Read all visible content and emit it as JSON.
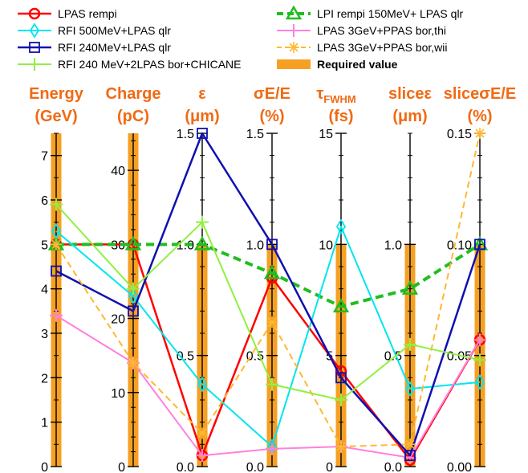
{
  "chart_data": {
    "type": "line",
    "subtype": "parallel-coordinates",
    "axes": [
      {
        "key": "energy",
        "title_lines": [
          "Energy",
          "(GeV)"
        ],
        "range": [
          0,
          7.5
        ],
        "ticks": [
          0,
          1,
          2,
          3,
          4,
          5,
          6,
          7
        ],
        "tick_labels": [
          "0",
          "1",
          "2",
          "3",
          "4",
          "5",
          "6",
          "7"
        ],
        "required": [
          0,
          7.5
        ]
      },
      {
        "key": "charge",
        "title_lines": [
          "Charge",
          "(pC)"
        ],
        "range": [
          0,
          45
        ],
        "ticks": [
          0,
          10,
          20,
          30,
          40
        ],
        "tick_labels": [
          "0",
          "10",
          "20",
          "30",
          "40"
        ],
        "required": [
          0,
          45
        ]
      },
      {
        "key": "emittance",
        "title_lines": [
          "ε",
          "(μm)"
        ],
        "range": [
          0,
          1.5
        ],
        "ticks": [
          0,
          0.5,
          1.0,
          1.5
        ],
        "tick_labels": [
          "0.0",
          "0.5",
          "1.0",
          "1.5"
        ],
        "required": [
          0,
          1.0
        ]
      },
      {
        "key": "energy_spread",
        "title_lines": [
          "σE/E",
          "(%)"
        ],
        "range": [
          0,
          1.5
        ],
        "ticks": [
          0,
          0.5,
          1.0,
          1.5
        ],
        "tick_labels": [
          "0.0",
          "0.5",
          "1.0",
          "1.5"
        ],
        "required": [
          0,
          1.0
        ]
      },
      {
        "key": "duration",
        "title_lines": [
          "τFWHM",
          "(fs)"
        ],
        "title_main": "τ",
        "title_sub": "FWHM",
        "range": [
          0,
          15
        ],
        "ticks": [
          0,
          5,
          10,
          15
        ],
        "tick_labels": [
          "0",
          "5",
          "10",
          "15"
        ],
        "required": [
          0,
          10
        ]
      },
      {
        "key": "slice_emittance",
        "title_lines": [
          "sliceε",
          "(μm)"
        ],
        "range": [
          0,
          1.5
        ],
        "ticks": [
          0,
          0.5,
          1.0
        ],
        "tick_labels": [
          "0.0",
          "0.5",
          "1.0"
        ],
        "required": [
          0,
          1.0
        ]
      },
      {
        "key": "slice_energy_spread",
        "title_lines": [
          "sliceσE/E",
          "(%)"
        ],
        "range": [
          0,
          0.15
        ],
        "ticks": [
          0,
          0.05,
          0.1,
          0.15
        ],
        "tick_labels": [
          "0.00",
          "0.05",
          "0.10",
          "0.15"
        ],
        "required": [
          0,
          0.1
        ]
      }
    ],
    "series": [
      {
        "name": "LPAS rempi",
        "color": "#ff0000",
        "marker": "circle",
        "dash": false,
        "width": 2.5,
        "values": [
          5.0,
          30,
          0.05,
          0.85,
          4.3,
          0.03,
          0.057
        ]
      },
      {
        "name": "LPI rempi 150MeV+ LPAS qlr",
        "color": "#1fbe1f",
        "marker": "triangle",
        "dash": true,
        "width": 4,
        "values": [
          5.0,
          30,
          1.0,
          0.87,
          7.2,
          0.8,
          0.1
        ]
      },
      {
        "name": "RFI 500MeV+LPAS qlr",
        "color": "#00e5ee",
        "marker": "diamond",
        "dash": false,
        "width": 2,
        "values": [
          5.3,
          23,
          0.37,
          0.09,
          10.8,
          0.35,
          0.038
        ]
      },
      {
        "name": "LPAS 3GeV+PPAS bor,thi",
        "color": "#ff80e0",
        "marker": "plus",
        "dash": false,
        "width": 2,
        "values": [
          3.4,
          14,
          0.05,
          0.08,
          0.9,
          0.04,
          0.057
        ]
      },
      {
        "name": "RFI 240MeV+LPAS qlr",
        "color": "#1010b0",
        "marker": "square",
        "dash": false,
        "width": 2.5,
        "values": [
          4.4,
          21,
          1.5,
          1.0,
          4.0,
          0.05,
          0.1
        ]
      },
      {
        "name": "LPAS 3GeV+PPAS bor,wii",
        "color": "#ffb830",
        "marker": "star",
        "dash": true,
        "width": 2,
        "values": [
          5.0,
          14,
          0.15,
          0.65,
          0.9,
          0.1,
          0.15
        ]
      },
      {
        "name": "RFI 240 MeV+2LPAS bor+CHICANE",
        "color": "#90f040",
        "marker": "plus",
        "dash": false,
        "width": 2,
        "values": [
          5.9,
          24,
          1.1,
          0.37,
          3.0,
          0.55,
          0.048
        ]
      }
    ],
    "legend": {
      "position": "top",
      "items": [
        {
          "label": "LPAS rempi",
          "series": 0
        },
        {
          "label": "RFI 500MeV+LPAS qlr",
          "series": 2
        },
        {
          "label": "RFI 240MeV+LPAS qlr",
          "series": 4
        },
        {
          "label": "RFI 240 MeV+2LPAS bor+CHICANE",
          "series": 6
        },
        {
          "label": "LPI rempi 150MeV+ LPAS qlr",
          "series": 1
        },
        {
          "label": "LPAS 3GeV+PPAS bor,thi",
          "series": 3
        },
        {
          "label": "LPAS 3GeV+PPAS bor,wii",
          "series": 5
        },
        {
          "label": "Required value",
          "series": null
        }
      ]
    },
    "required_value": {
      "label": "Required value",
      "color": "#f5a023"
    },
    "axis_title_color": "#f06a14"
  }
}
